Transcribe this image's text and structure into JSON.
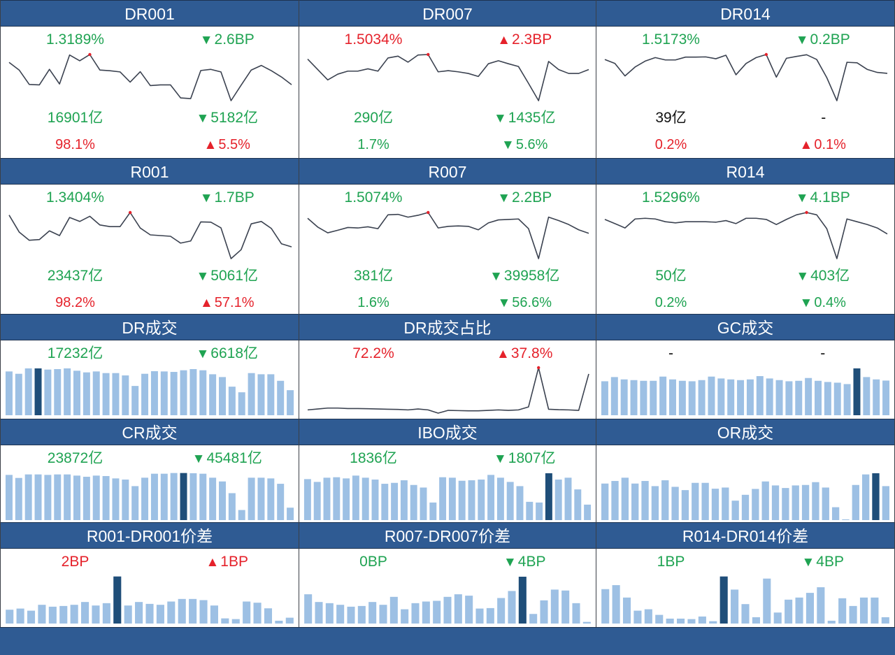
{
  "colors": {
    "header": "#2f5b93",
    "bar": "#9dc0e4",
    "bar_highlight": "#1f4e79",
    "line": "#3b4250",
    "peak": "#e5222b",
    "up": "#e5222b",
    "down": "#1fa352"
  },
  "rate_cards": [
    {
      "title": "DR001",
      "rate": "1.3189%",
      "rate_arrow": "▼",
      "rate_change": "2.6BP",
      "volume": "16901亿",
      "volume_arrow": "▼",
      "volume_change": "5182亿",
      "share": "98.1%",
      "share_arrow": "▲",
      "share_change": "5.5%",
      "peak_index": 8,
      "series": [
        228,
        195,
        133,
        131,
        198,
        135,
        260,
        235,
        262,
        195,
        192,
        187,
        143,
        188,
        128,
        131,
        131,
        75,
        72,
        193,
        198,
        187,
        63,
        130,
        195,
        215,
        192,
        165,
        132
      ]
    },
    {
      "title": "DR007",
      "rate": "1.5034%",
      "rate_arrow": "▲",
      "rate_change": "2.3BP",
      "volume": "290亿",
      "volume_arrow": "▼",
      "volume_change": "1435亿",
      "share": "1.7%",
      "share_arrow": "▼",
      "share_change": "5.6%",
      "peak_index": 12,
      "series": [
        360,
        315,
        270,
        295,
        308,
        308,
        318,
        308,
        365,
        373,
        347,
        378,
        380,
        305,
        310,
        305,
        298,
        285,
        340,
        353,
        340,
        328,
        255,
        180,
        350,
        315,
        298,
        298,
        315
      ]
    },
    {
      "title": "DR014",
      "rate": "1.5173%",
      "rate_arrow": "▼",
      "rate_change": "0.2BP",
      "volume": "39亿",
      "volume_arrow": "",
      "volume_change": "-",
      "share": "0.2%",
      "share_arrow": "▲",
      "share_change": "0.1%",
      "peak_index": 16,
      "series": [
        357,
        340,
        287,
        325,
        350,
        365,
        355,
        355,
        367,
        367,
        368,
        360,
        375,
        292,
        340,
        365,
        378,
        282,
        362,
        370,
        377,
        357,
        280,
        182,
        345,
        343,
        315,
        302,
        298
      ]
    },
    {
      "title": "R001",
      "rate": "1.3404%",
      "rate_arrow": "▼",
      "rate_change": "1.7BP",
      "volume": "23437亿",
      "volume_arrow": "▼",
      "volume_change": "5061亿",
      "share": "98.2%",
      "share_arrow": "▲",
      "share_change": "57.1%",
      "peak_index": 12,
      "series": [
        367,
        295,
        260,
        263,
        300,
        280,
        357,
        340,
        362,
        325,
        318,
        318,
        378,
        312,
        283,
        280,
        277,
        248,
        257,
        338,
        337,
        313,
        182,
        220,
        330,
        340,
        310,
        245,
        232
      ]
    },
    {
      "title": "R007",
      "rate": "1.5074%",
      "rate_arrow": "▼",
      "rate_change": "2.2BP",
      "volume": "381亿",
      "volume_arrow": "▼",
      "volume_change": "39958亿",
      "share": "1.6%",
      "share_arrow": "▼",
      "share_change": "56.6%",
      "peak_index": 12,
      "series": [
        355,
        317,
        292,
        303,
        315,
        313,
        318,
        310,
        370,
        372,
        360,
        368,
        380,
        313,
        320,
        322,
        320,
        305,
        335,
        348,
        350,
        352,
        310,
        180,
        360,
        345,
        328,
        305,
        290
      ]
    },
    {
      "title": "R014",
      "rate": "1.5296%",
      "rate_arrow": "▼",
      "rate_change": "4.1BP",
      "volume": "50亿",
      "volume_arrow": "▼",
      "volume_change": "403亿",
      "share": "0.2%",
      "share_arrow": "▼",
      "share_change": "0.4%",
      "peak_index": 20,
      "series": [
        350,
        332,
        313,
        352,
        355,
        352,
        340,
        335,
        340,
        340,
        340,
        338,
        345,
        332,
        355,
        355,
        350,
        328,
        350,
        370,
        380,
        370,
        310,
        180,
        352,
        340,
        328,
        313,
        287
      ]
    }
  ],
  "dr_volume": {
    "title": "DR成交",
    "value": "17232亿",
    "arrow": "▼",
    "change": "6618亿",
    "highlight_index": 3,
    "bars": [
      187,
      177,
      200,
      200,
      195,
      197,
      200,
      190,
      183,
      187,
      180,
      180,
      170,
      125,
      177,
      188,
      187,
      185,
      192,
      197,
      192,
      175,
      163,
      122,
      98,
      180,
      175,
      175,
      147,
      107
    ]
  },
  "dr_share": {
    "title": "DR成交占比",
    "value": "72.2%",
    "arrow": "▲",
    "change": "37.8%",
    "peak_index": 23,
    "series": [
      82,
      86,
      90,
      90,
      88,
      88,
      87,
      86,
      85,
      84,
      82,
      86,
      82,
      68,
      80,
      79,
      78,
      78,
      80,
      82,
      80,
      82,
      95,
      265,
      85,
      83,
      82,
      80,
      238
    ]
  },
  "gc_volume": {
    "title": "GC成交",
    "value": "-",
    "change": "-",
    "highlight_index": 26,
    "bars": [
      145,
      163,
      153,
      150,
      147,
      147,
      165,
      153,
      147,
      145,
      150,
      165,
      157,
      153,
      150,
      153,
      167,
      157,
      150,
      145,
      147,
      159,
      147,
      142,
      139,
      133,
      200,
      163,
      153,
      148
    ]
  },
  "cr_volume": {
    "title": "CR成交",
    "value": "23872亿",
    "arrow": "▼",
    "change": "45481亿",
    "highlight_index": 18,
    "bars": [
      193,
      180,
      195,
      195,
      193,
      195,
      195,
      190,
      185,
      190,
      188,
      178,
      173,
      145,
      181,
      198,
      198,
      201,
      201,
      200,
      198,
      181,
      165,
      115,
      43,
      181,
      181,
      178,
      155,
      53
    ]
  },
  "ibo_volume": {
    "title": "IBO成交",
    "value": "1836亿",
    "arrow": "▼",
    "change": "1807亿",
    "highlight_index": 25,
    "bars": [
      175,
      163,
      181,
      183,
      178,
      190,
      181,
      173,
      155,
      159,
      170,
      150,
      139,
      75,
      183,
      181,
      168,
      170,
      173,
      193,
      181,
      163,
      145,
      78,
      75,
      200,
      173,
      181,
      131,
      66
    ]
  },
  "or_volume": {
    "title": "OR成交",
    "highlight_index": 27,
    "bars": [
      156,
      167,
      181,
      156,
      167,
      145,
      170,
      142,
      128,
      159,
      159,
      134,
      139,
      83,
      108,
      133,
      165,
      148,
      137,
      148,
      150,
      162,
      139,
      55,
      3,
      150,
      195,
      200,
      145
    ]
  },
  "spread_001": {
    "title": "R001-DR001价差",
    "value": "2BP",
    "arrow": "▲",
    "change": "1BP",
    "highlight_index": 10,
    "bars": [
      59,
      64,
      55,
      80,
      72,
      75,
      80,
      92,
      77,
      87,
      201,
      77,
      92,
      84,
      80,
      94,
      105,
      105,
      100,
      77,
      22,
      19,
      94,
      89,
      65,
      12,
      25
    ]
  },
  "spread_007": {
    "title": "R007-DR007价差",
    "value": "0BP",
    "arrow": "▼",
    "change": "4BP",
    "highlight_index": 20,
    "bars": [
      125,
      92,
      87,
      80,
      72,
      75,
      92,
      80,
      114,
      61,
      87,
      94,
      97,
      114,
      125,
      119,
      64,
      66,
      109,
      139,
      200,
      41,
      99,
      145,
      141,
      87,
      7
    ]
  },
  "spread_014": {
    "title": "R014-DR014价差",
    "value": "1BP",
    "arrow": "▼",
    "change": "4BP",
    "highlight_index": 11,
    "bars": [
      147,
      164,
      111,
      55,
      61,
      37,
      21,
      21,
      19,
      30,
      10,
      201,
      145,
      83,
      27,
      192,
      47,
      102,
      111,
      131,
      155,
      12,
      108,
      75,
      111,
      111,
      27
    ]
  }
}
